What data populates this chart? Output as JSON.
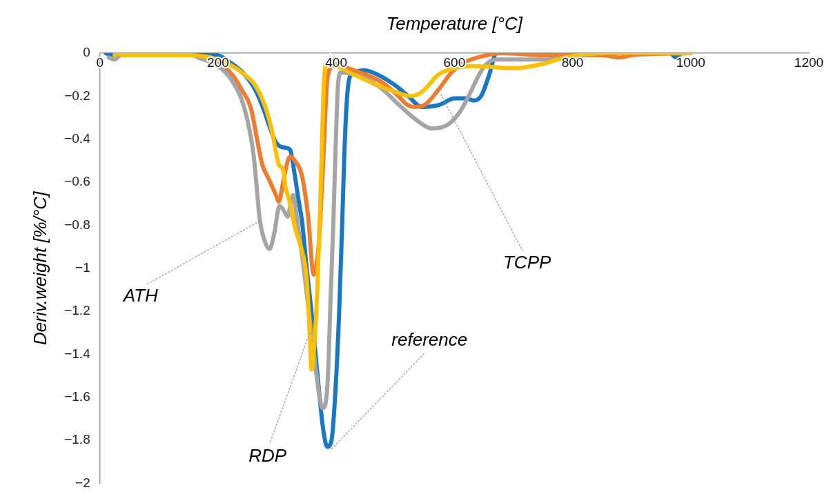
{
  "chart_data": {
    "type": "line",
    "xlabel": "Temperature [°C]",
    "ylabel": "Deriv.weight [%/°C]",
    "xlim": [
      0,
      1200
    ],
    "xticks": [
      0,
      200,
      400,
      600,
      800,
      1000,
      1200
    ],
    "ylim": [
      -2,
      0
    ],
    "yticks": [
      0,
      {
        "value": -0.2,
        "label": "−0.2"
      },
      {
        "value": -0.4,
        "label": "−0.4"
      },
      {
        "value": -0.6,
        "label": "−0.6"
      },
      {
        "value": -0.8,
        "label": "−0.8"
      },
      {
        "value": -1,
        "label": "−1"
      },
      {
        "value": -1.2,
        "label": "−1.2"
      },
      {
        "value": -1.4,
        "label": "−1.4"
      },
      {
        "value": -1.6,
        "label": "−1.6"
      },
      {
        "value": -1.8,
        "label": "−1.8"
      },
      {
        "value": -2,
        "label": "−2"
      }
    ],
    "grid": false,
    "legend": false,
    "marker": "none",
    "line_style": "solid",
    "series": [
      {
        "color": "#1a78c2",
        "x": [
          10,
          20,
          40,
          150,
          200,
          224,
          245,
          263,
          277,
          287,
          297,
          303,
          315,
          322,
          330,
          336,
          342,
          350,
          358,
          365,
          372,
          378,
          385,
          392,
          398,
          405,
          410,
          414,
          418,
          422,
          430,
          448,
          470,
          500,
          522,
          545,
          575,
          600,
          620,
          632,
          645,
          659,
          671,
          700,
          900,
          965,
          975,
          985,
          1000
        ],
        "values": [
          0,
          -0.01,
          0,
          0,
          -0.01,
          -0.05,
          -0.1,
          -0.17,
          -0.26,
          -0.34,
          -0.41,
          -0.43,
          -0.44,
          -0.45,
          -0.57,
          -0.68,
          -0.78,
          -1.0,
          -1.2,
          -1.4,
          -1.6,
          -1.75,
          -1.83,
          -1.8,
          -1.6,
          -1.2,
          -0.8,
          -0.45,
          -0.22,
          -0.12,
          -0.09,
          -0.08,
          -0.1,
          -0.15,
          -0.2,
          -0.25,
          -0.24,
          -0.21,
          -0.21,
          -0.22,
          -0.2,
          -0.1,
          0,
          0,
          0,
          0,
          -0.02,
          0,
          0
        ]
      },
      {
        "color": "#ed7d31",
        "x": [
          25,
          40,
          150,
          190,
          224,
          240,
          256,
          266,
          275,
          285,
          298,
          303,
          310,
          318,
          322,
          330,
          342,
          352,
          362,
          370,
          378,
          384,
          390,
          402,
          420,
          450,
          480,
          505,
          520,
          532,
          550,
          573,
          595,
          612,
          640,
          680,
          750,
          850,
          880,
          900,
          1000
        ],
        "values": [
          0,
          -0.01,
          -0.01,
          -0.03,
          -0.1,
          -0.17,
          -0.26,
          -0.4,
          -0.52,
          -0.58,
          -0.66,
          -0.69,
          -0.6,
          -0.5,
          -0.48,
          -0.5,
          -0.57,
          -0.75,
          -1.03,
          -0.9,
          -0.5,
          -0.15,
          -0.07,
          -0.05,
          -0.07,
          -0.1,
          -0.14,
          -0.2,
          -0.24,
          -0.25,
          -0.24,
          -0.17,
          -0.09,
          -0.05,
          -0.02,
          0,
          -0.01,
          -0.01,
          -0.02,
          -0.01,
          0
        ]
      },
      {
        "color": "#a5a5a5",
        "x": [
          15,
          25,
          35,
          150,
          166,
          200,
          224,
          245,
          260,
          271,
          280,
          287,
          295,
          304,
          311,
          318,
          323,
          327,
          335,
          345,
          360,
          372,
          377,
          385,
          391,
          395,
          400,
          403,
          408,
          430,
          470,
          510,
          540,
          562,
          590,
          610,
          624,
          640,
          651,
          671,
          750,
          800,
          850,
          1000
        ],
        "values": [
          -0.02,
          -0.03,
          -0.01,
          0,
          -0.02,
          -0.06,
          -0.13,
          -0.26,
          -0.47,
          -0.78,
          -0.88,
          -0.91,
          -0.84,
          -0.71,
          -0.73,
          -0.76,
          -0.7,
          -0.66,
          -0.8,
          -1.0,
          -1.35,
          -1.6,
          -1.65,
          -1.55,
          -1.1,
          -0.8,
          -0.35,
          -0.15,
          -0.09,
          -0.1,
          -0.15,
          -0.25,
          -0.32,
          -0.35,
          -0.33,
          -0.27,
          -0.2,
          -0.11,
          -0.06,
          -0.03,
          -0.03,
          -0.02,
          0,
          0
        ]
      },
      {
        "color": "#ffc000",
        "x": [
          25,
          30,
          40,
          150,
          200,
          224,
          245,
          263,
          280,
          291,
          298,
          303,
          310,
          314,
          322,
          330,
          340,
          350,
          355,
          358,
          363,
          368,
          374,
          379,
          383,
          400,
          430,
          470,
          500,
          526,
          545,
          573,
          600,
          632,
          700,
          750,
          788,
          850,
          1000
        ],
        "values": [
          -0.01,
          0,
          -0.01,
          -0.01,
          -0.03,
          -0.06,
          -0.1,
          -0.15,
          -0.25,
          -0.36,
          -0.46,
          -0.52,
          -0.54,
          -0.62,
          -0.7,
          -0.81,
          -0.9,
          -1.05,
          -1.3,
          -1.47,
          -1.35,
          -1.1,
          -0.6,
          -0.15,
          -0.05,
          -0.06,
          -0.1,
          -0.15,
          -0.18,
          -0.2,
          -0.18,
          -0.1,
          -0.07,
          -0.06,
          -0.07,
          -0.05,
          -0.02,
          0,
          0
        ]
      }
    ],
    "annotations": [
      {
        "text": "ATH",
        "x": 271,
        "y": -0.78
      },
      {
        "text": "RDP",
        "x": 355,
        "y": -1.3
      },
      {
        "text": "reference",
        "x": 392,
        "y": -1.84
      },
      {
        "text": "TCPP",
        "x": 577,
        "y": -0.19
      }
    ]
  }
}
